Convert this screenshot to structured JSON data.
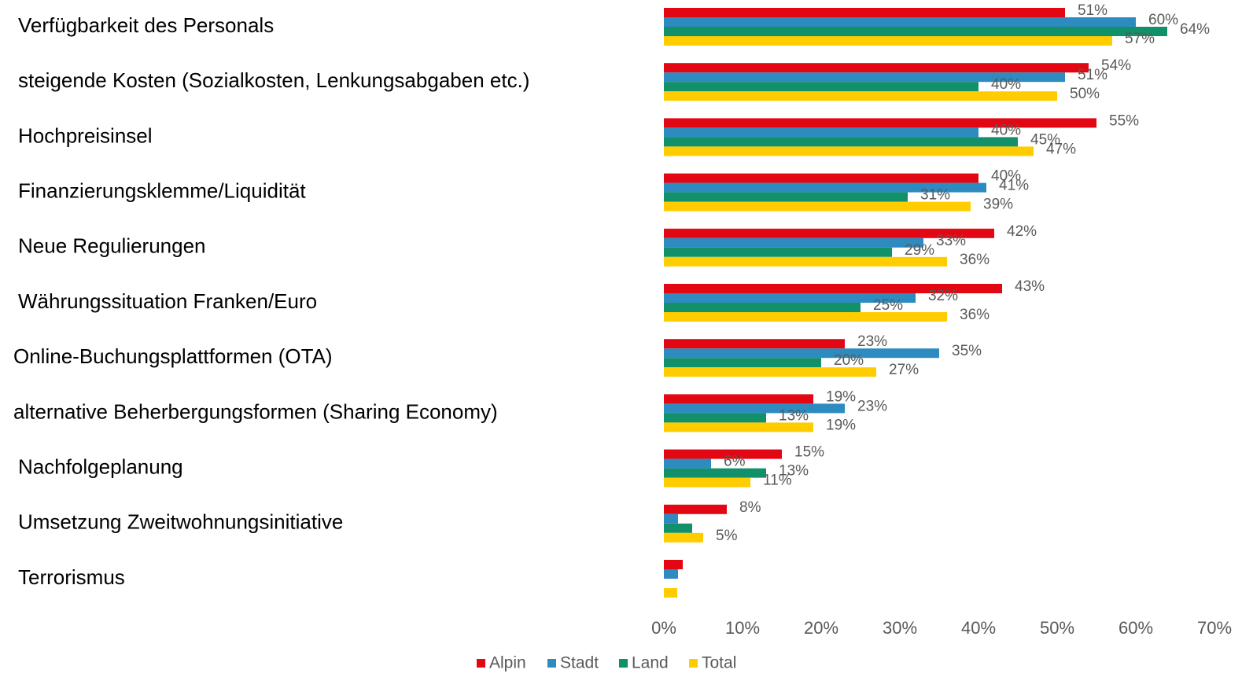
{
  "chart_data": {
    "type": "bar",
    "orientation": "horizontal",
    "categories": [
      "Verfügbarkeit des Personals",
      "steigende Kosten (Sozialkosten, Lenkungsabgaben etc.)",
      "Hochpreisinsel",
      "Finanzierungsklemme/Liquidität",
      "Neue Regulierungen",
      "Währungssituation Franken/Euro",
      "Online-Buchungsplattformen (OTA)",
      "alternative Beherbergungsformen (Sharing Economy)",
      "Nachfolgeplanung",
      "Umsetzung Zweitwohnungsinitiative",
      "Terrorismus"
    ],
    "series": [
      {
        "name": "Alpin",
        "color": "#e30613",
        "values": [
          51,
          54,
          55,
          40,
          42,
          43,
          23,
          19,
          15,
          8,
          2.4
        ],
        "value_labels": [
          "51%",
          "54%",
          "55%",
          "40%",
          "42%",
          "43%",
          "23%",
          "19%",
          "15%",
          "8%",
          null
        ]
      },
      {
        "name": "Stadt",
        "color": "#2e8bc0",
        "values": [
          60,
          51,
          40,
          41,
          33,
          32,
          35,
          23,
          6,
          1.8,
          1.8
        ],
        "value_labels": [
          "60%",
          "51%",
          "40%",
          "41%",
          "33%",
          "32%",
          "35%",
          "23%",
          "6%",
          null,
          null
        ]
      },
      {
        "name": "Land",
        "color": "#12906a",
        "values": [
          64,
          40,
          45,
          31,
          29,
          25,
          20,
          13,
          13,
          3.6,
          0
        ],
        "value_labels": [
          "64%",
          "40%",
          "45%",
          "31%",
          "29%",
          "25%",
          "20%",
          "13%",
          "13%",
          null,
          null
        ]
      },
      {
        "name": "Total",
        "color": "#ffcc00",
        "values": [
          57,
          50,
          47,
          39,
          36,
          36,
          27,
          19,
          11,
          5,
          1.7
        ],
        "value_labels": [
          "57%",
          "50%",
          "47%",
          "39%",
          "36%",
          "36%",
          "27%",
          "19%",
          "11%",
          "5%",
          null
        ]
      }
    ],
    "xlim": [
      0,
      70
    ],
    "xticks": [
      {
        "value": 0,
        "label": "0%"
      },
      {
        "value": 10,
        "label": "10%"
      },
      {
        "value": 20,
        "label": "20%"
      },
      {
        "value": 30,
        "label": "30%"
      },
      {
        "value": 40,
        "label": "40%"
      },
      {
        "value": 50,
        "label": "50%"
      },
      {
        "value": 60,
        "label": "60%"
      },
      {
        "value": 70,
        "label": "70%"
      }
    ],
    "grid": false,
    "legend": "bottom"
  }
}
